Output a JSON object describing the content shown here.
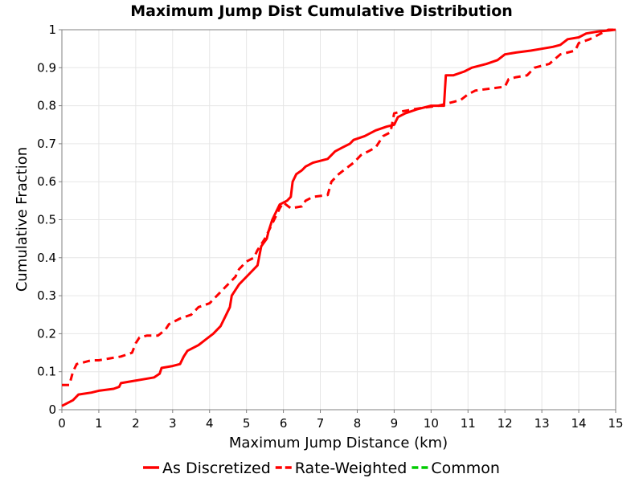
{
  "chart_data": {
    "type": "line",
    "title": "Maximum Jump Dist Cumulative Distribution",
    "xlabel": "Maximum Jump Distance (km)",
    "ylabel": "Cumulative Fraction",
    "xlim": [
      0,
      15
    ],
    "ylim": [
      0,
      1
    ],
    "x_ticks": [
      "0",
      "1",
      "2",
      "3",
      "4",
      "5",
      "6",
      "7",
      "8",
      "9",
      "10",
      "11",
      "12",
      "13",
      "14",
      "15"
    ],
    "y_ticks": [
      "0",
      "0.1",
      "0.2",
      "0.3",
      "0.4",
      "0.5",
      "0.6",
      "0.7",
      "0.8",
      "0.9",
      "1"
    ],
    "grid": true,
    "legend_position": "bottom",
    "series": [
      {
        "name": "As Discretized",
        "color": "#ff0000",
        "style": "solid",
        "points": [
          [
            0.0,
            0.01
          ],
          [
            0.3,
            0.025
          ],
          [
            0.45,
            0.04
          ],
          [
            0.8,
            0.045
          ],
          [
            1.0,
            0.05
          ],
          [
            1.4,
            0.055
          ],
          [
            1.55,
            0.06
          ],
          [
            1.6,
            0.07
          ],
          [
            1.9,
            0.075
          ],
          [
            2.2,
            0.08
          ],
          [
            2.5,
            0.085
          ],
          [
            2.65,
            0.095
          ],
          [
            2.7,
            0.11
          ],
          [
            3.0,
            0.115
          ],
          [
            3.2,
            0.12
          ],
          [
            3.3,
            0.14
          ],
          [
            3.4,
            0.155
          ],
          [
            3.7,
            0.17
          ],
          [
            3.9,
            0.185
          ],
          [
            4.1,
            0.2
          ],
          [
            4.3,
            0.22
          ],
          [
            4.45,
            0.25
          ],
          [
            4.55,
            0.27
          ],
          [
            4.6,
            0.3
          ],
          [
            4.8,
            0.33
          ],
          [
            5.0,
            0.35
          ],
          [
            5.2,
            0.37
          ],
          [
            5.3,
            0.38
          ],
          [
            5.4,
            0.43
          ],
          [
            5.55,
            0.45
          ],
          [
            5.6,
            0.47
          ],
          [
            5.7,
            0.5
          ],
          [
            5.8,
            0.52
          ],
          [
            5.9,
            0.54
          ],
          [
            6.1,
            0.55
          ],
          [
            6.2,
            0.56
          ],
          [
            6.25,
            0.6
          ],
          [
            6.35,
            0.62
          ],
          [
            6.5,
            0.63
          ],
          [
            6.6,
            0.64
          ],
          [
            6.8,
            0.65
          ],
          [
            7.0,
            0.655
          ],
          [
            7.2,
            0.66
          ],
          [
            7.4,
            0.68
          ],
          [
            7.6,
            0.69
          ],
          [
            7.8,
            0.7
          ],
          [
            7.9,
            0.71
          ],
          [
            8.2,
            0.72
          ],
          [
            8.5,
            0.735
          ],
          [
            8.8,
            0.745
          ],
          [
            9.0,
            0.75
          ],
          [
            9.1,
            0.77
          ],
          [
            9.3,
            0.78
          ],
          [
            9.6,
            0.79
          ],
          [
            10.0,
            0.8
          ],
          [
            10.35,
            0.8
          ],
          [
            10.4,
            0.88
          ],
          [
            10.6,
            0.88
          ],
          [
            10.9,
            0.89
          ],
          [
            11.1,
            0.9
          ],
          [
            11.5,
            0.91
          ],
          [
            11.8,
            0.92
          ],
          [
            12.0,
            0.935
          ],
          [
            12.3,
            0.94
          ],
          [
            12.7,
            0.945
          ],
          [
            13.0,
            0.95
          ],
          [
            13.3,
            0.955
          ],
          [
            13.5,
            0.96
          ],
          [
            13.7,
            0.975
          ],
          [
            14.0,
            0.98
          ],
          [
            14.2,
            0.99
          ],
          [
            14.5,
            0.995
          ],
          [
            15.0,
            1.0
          ]
        ]
      },
      {
        "name": "Rate-Weighted",
        "color": "#ff0000",
        "style": "dashed",
        "points": [
          [
            0.0,
            0.065
          ],
          [
            0.2,
            0.065
          ],
          [
            0.3,
            0.1
          ],
          [
            0.4,
            0.12
          ],
          [
            0.6,
            0.125
          ],
          [
            0.8,
            0.13
          ],
          [
            1.0,
            0.13
          ],
          [
            1.3,
            0.135
          ],
          [
            1.6,
            0.14
          ],
          [
            1.9,
            0.15
          ],
          [
            2.0,
            0.175
          ],
          [
            2.1,
            0.19
          ],
          [
            2.3,
            0.195
          ],
          [
            2.6,
            0.195
          ],
          [
            2.8,
            0.21
          ],
          [
            2.9,
            0.225
          ],
          [
            3.2,
            0.24
          ],
          [
            3.5,
            0.25
          ],
          [
            3.7,
            0.27
          ],
          [
            4.0,
            0.28
          ],
          [
            4.1,
            0.29
          ],
          [
            4.3,
            0.31
          ],
          [
            4.5,
            0.33
          ],
          [
            4.7,
            0.35
          ],
          [
            4.8,
            0.37
          ],
          [
            5.0,
            0.39
          ],
          [
            5.2,
            0.4
          ],
          [
            5.3,
            0.42
          ],
          [
            5.5,
            0.45
          ],
          [
            5.7,
            0.49
          ],
          [
            5.8,
            0.51
          ],
          [
            5.9,
            0.53
          ],
          [
            6.0,
            0.545
          ],
          [
            6.2,
            0.53
          ],
          [
            6.5,
            0.535
          ],
          [
            6.6,
            0.55
          ],
          [
            6.8,
            0.56
          ],
          [
            7.2,
            0.565
          ],
          [
            7.3,
            0.6
          ],
          [
            7.5,
            0.62
          ],
          [
            7.7,
            0.635
          ],
          [
            7.9,
            0.65
          ],
          [
            8.1,
            0.67
          ],
          [
            8.3,
            0.68
          ],
          [
            8.5,
            0.69
          ],
          [
            8.7,
            0.72
          ],
          [
            8.9,
            0.73
          ],
          [
            9.0,
            0.78
          ],
          [
            9.2,
            0.785
          ],
          [
            9.5,
            0.79
          ],
          [
            9.8,
            0.795
          ],
          [
            10.2,
            0.8
          ],
          [
            10.6,
            0.81
          ],
          [
            10.8,
            0.815
          ],
          [
            11.0,
            0.83
          ],
          [
            11.2,
            0.84
          ],
          [
            11.6,
            0.845
          ],
          [
            12.0,
            0.85
          ],
          [
            12.1,
            0.87
          ],
          [
            12.3,
            0.875
          ],
          [
            12.6,
            0.88
          ],
          [
            12.8,
            0.9
          ],
          [
            13.0,
            0.905
          ],
          [
            13.2,
            0.91
          ],
          [
            13.5,
            0.935
          ],
          [
            13.9,
            0.945
          ],
          [
            14.0,
            0.965
          ],
          [
            14.3,
            0.975
          ],
          [
            14.5,
            0.985
          ],
          [
            14.8,
            1.0
          ],
          [
            15.0,
            1.0
          ]
        ]
      },
      {
        "name": "Common",
        "color": "#00cc00",
        "style": "dashed",
        "points": []
      }
    ]
  }
}
